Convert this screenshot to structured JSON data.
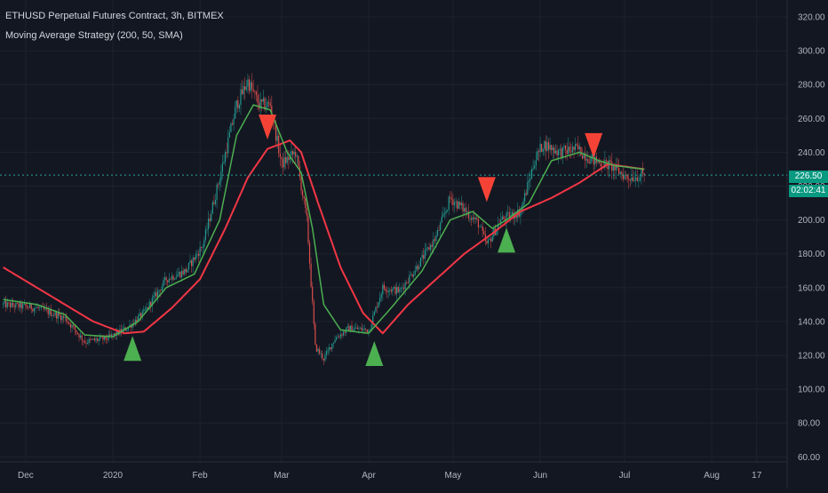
{
  "header": {
    "title": "ETHUSD Perpetual Futures Contract, 3h, BITMEX",
    "strategy": "Moving Average Strategy (200, 50, SMA)"
  },
  "last_price": {
    "value": "226.50",
    "countdown": "02:02:41"
  },
  "colors": {
    "background": "#131722",
    "grid": "#1e222d",
    "axis_text": "#b2b5be",
    "up": "#26a69a",
    "down": "#ef5350",
    "fast_ma": "#4caf50",
    "slow_ma": "#f23645",
    "buy": "#4caf50",
    "sell": "#f44336",
    "last_price_line": "#26a69a"
  },
  "chart_data": {
    "type": "candlestick",
    "title": "ETHUSD Perpetual Futures Contract, 3h, BITMEX",
    "subtitle": "Moving Average Strategy (200, 50, SMA)",
    "x_ticks": [
      "Dec",
      "2020",
      "Feb",
      "Mar",
      "Apr",
      "May",
      "Jun",
      "Jul",
      "Aug",
      "17"
    ],
    "y_ticks": [
      "60.00",
      "80.00",
      "100.00",
      "120.00",
      "140.00",
      "160.00",
      "180.00",
      "200.00",
      "220.00",
      "240.00",
      "260.00",
      "280.00",
      "300.00",
      "320.00"
    ],
    "ylim": [
      57,
      330
    ],
    "grid": true,
    "price_keypoints": [
      [
        "2019-11-23",
        150
      ],
      [
        "2019-12-05",
        148
      ],
      [
        "2019-12-15",
        142
      ],
      [
        "2019-12-22",
        128
      ],
      [
        "2019-12-30",
        130
      ],
      [
        "2020-01-06",
        136
      ],
      [
        "2020-01-12",
        145
      ],
      [
        "2020-01-20",
        165
      ],
      [
        "2020-01-27",
        170
      ],
      [
        "2020-02-02",
        185
      ],
      [
        "2020-02-08",
        225
      ],
      [
        "2020-02-14",
        268
      ],
      [
        "2020-02-18",
        282
      ],
      [
        "2020-02-22",
        268
      ],
      [
        "2020-02-26",
        268
      ],
      [
        "2020-03-01",
        233
      ],
      [
        "2020-03-06",
        240
      ],
      [
        "2020-03-10",
        200
      ],
      [
        "2020-03-13",
        125
      ],
      [
        "2020-03-16",
        118
      ],
      [
        "2020-03-20",
        130
      ],
      [
        "2020-03-25",
        136
      ],
      [
        "2020-04-01",
        135
      ],
      [
        "2020-04-06",
        160
      ],
      [
        "2020-04-12",
        158
      ],
      [
        "2020-04-18",
        172
      ],
      [
        "2020-04-25",
        190
      ],
      [
        "2020-04-30",
        213
      ],
      [
        "2020-05-05",
        206
      ],
      [
        "2020-05-10",
        198
      ],
      [
        "2020-05-13",
        185
      ],
      [
        "2020-05-18",
        200
      ],
      [
        "2020-05-25",
        205
      ],
      [
        "2020-05-30",
        235
      ],
      [
        "2020-06-02",
        245
      ],
      [
        "2020-06-08",
        240
      ],
      [
        "2020-06-14",
        242
      ],
      [
        "2020-06-20",
        235
      ],
      [
        "2020-06-26",
        232
      ],
      [
        "2020-07-02",
        225
      ],
      [
        "2020-07-08",
        226.5
      ]
    ],
    "fast_ma_50": [
      [
        "2019-11-23",
        153
      ],
      [
        "2019-12-05",
        150
      ],
      [
        "2019-12-15",
        144
      ],
      [
        "2019-12-22",
        132
      ],
      [
        "2020-01-01",
        131
      ],
      [
        "2020-01-10",
        140
      ],
      [
        "2020-01-20",
        160
      ],
      [
        "2020-01-30",
        168
      ],
      [
        "2020-02-08",
        200
      ],
      [
        "2020-02-14",
        250
      ],
      [
        "2020-02-20",
        268
      ],
      [
        "2020-02-26",
        265
      ],
      [
        "2020-03-03",
        240
      ],
      [
        "2020-03-08",
        228
      ],
      [
        "2020-03-12",
        195
      ],
      [
        "2020-03-16",
        150
      ],
      [
        "2020-03-22",
        135
      ],
      [
        "2020-04-01",
        133
      ],
      [
        "2020-04-10",
        150
      ],
      [
        "2020-04-20",
        170
      ],
      [
        "2020-04-30",
        200
      ],
      [
        "2020-05-08",
        205
      ],
      [
        "2020-05-15",
        195
      ],
      [
        "2020-05-20",
        200
      ],
      [
        "2020-05-28",
        210
      ],
      [
        "2020-06-05",
        235
      ],
      [
        "2020-06-15",
        240
      ],
      [
        "2020-06-22",
        235
      ],
      [
        "2020-06-28",
        232
      ],
      [
        "2020-07-08",
        230
      ]
    ],
    "slow_ma_200": [
      [
        "2019-11-23",
        172
      ],
      [
        "2019-12-05",
        160
      ],
      [
        "2019-12-15",
        150
      ],
      [
        "2019-12-25",
        140
      ],
      [
        "2020-01-05",
        133
      ],
      [
        "2020-01-12",
        134
      ],
      [
        "2020-01-22",
        148
      ],
      [
        "2020-02-01",
        165
      ],
      [
        "2020-02-10",
        195
      ],
      [
        "2020-02-18",
        225
      ],
      [
        "2020-02-25",
        242
      ],
      [
        "2020-03-04",
        247
      ],
      [
        "2020-03-08",
        240
      ],
      [
        "2020-03-14",
        210
      ],
      [
        "2020-03-22",
        172
      ],
      [
        "2020-03-30",
        145
      ],
      [
        "2020-04-06",
        133
      ],
      [
        "2020-04-15",
        150
      ],
      [
        "2020-04-25",
        165
      ],
      [
        "2020-05-05",
        180
      ],
      [
        "2020-05-15",
        192
      ],
      [
        "2020-05-25",
        205
      ],
      [
        "2020-06-05",
        213
      ],
      [
        "2020-06-15",
        222
      ],
      [
        "2020-06-25",
        233
      ],
      [
        "2020-07-08",
        230
      ]
    ],
    "signals": [
      {
        "type": "buy",
        "date": "2020-01-08",
        "price": 123
      },
      {
        "type": "sell",
        "date": "2020-02-25",
        "price": 256
      },
      {
        "type": "buy",
        "date": "2020-04-03",
        "price": 120
      },
      {
        "type": "sell",
        "date": "2020-05-13",
        "price": 219
      },
      {
        "type": "buy",
        "date": "2020-05-20",
        "price": 187
      },
      {
        "type": "sell",
        "date": "2020-06-20",
        "price": 245
      }
    ]
  }
}
